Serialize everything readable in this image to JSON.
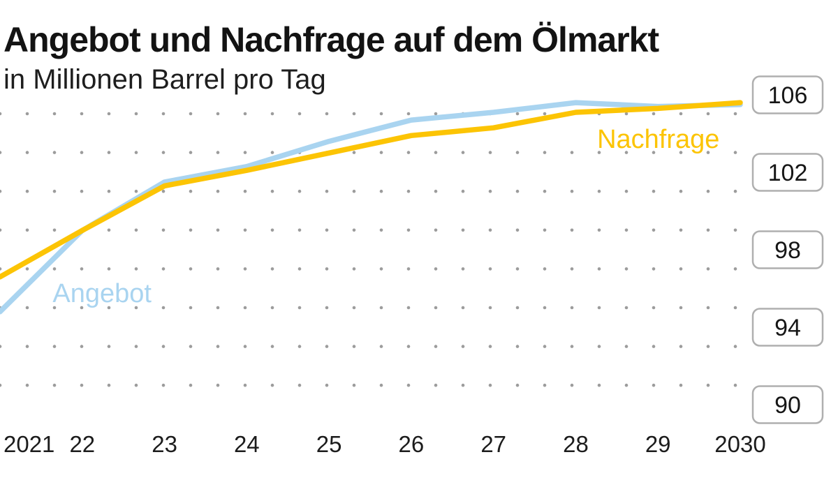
{
  "header": {
    "title": "Angebot und Nachfrage auf dem Ölmarkt",
    "subtitle": "in Millionen Barrel pro Tag"
  },
  "chart_data": {
    "type": "line",
    "title": "Angebot und Nachfrage auf dem Ölmarkt",
    "subtitle": "in Millionen Barrel pro Tag",
    "unit": "Millionen Barrel pro Tag",
    "grid": "dot-matrix",
    "legend_position": "inline-labels-on-plot",
    "x": [
      2021,
      2022,
      2023,
      2024,
      2025,
      2026,
      2027,
      2028,
      2029,
      2030
    ],
    "x_tick_labels": [
      "2021",
      "22",
      "23",
      "24",
      "25",
      "26",
      "27",
      "28",
      "29",
      "2030"
    ],
    "y_ticks": [
      106,
      102,
      98,
      94,
      90
    ],
    "xlim": [
      2021,
      2030
    ],
    "ylim": [
      89.5,
      106.5
    ],
    "series": [
      {
        "name": "Angebot",
        "color": "#A9D4F0",
        "values": [
          94.8,
          99.0,
          101.5,
          102.3,
          103.6,
          104.7,
          105.1,
          105.6,
          105.4,
          105.5
        ],
        "label_pos": {
          "x": 2021.64,
          "y": 95.3
        }
      },
      {
        "name": "Nachfrage",
        "color": "#FCC404",
        "values": [
          96.6,
          99.0,
          101.3,
          102.1,
          103.0,
          103.9,
          104.3,
          105.1,
          105.3,
          105.6
        ],
        "label_pos": {
          "x": 2028.26,
          "y": 103.26
        }
      }
    ]
  },
  "colors": {
    "background": "#FFFFFF",
    "grid_dot": "#9C9C9C",
    "axis_text": "#1C1C1C",
    "tick_box_border": "#AFAFAF",
    "tick_box_fill": "#FFFFFF",
    "tick_box_text": "#161616"
  }
}
